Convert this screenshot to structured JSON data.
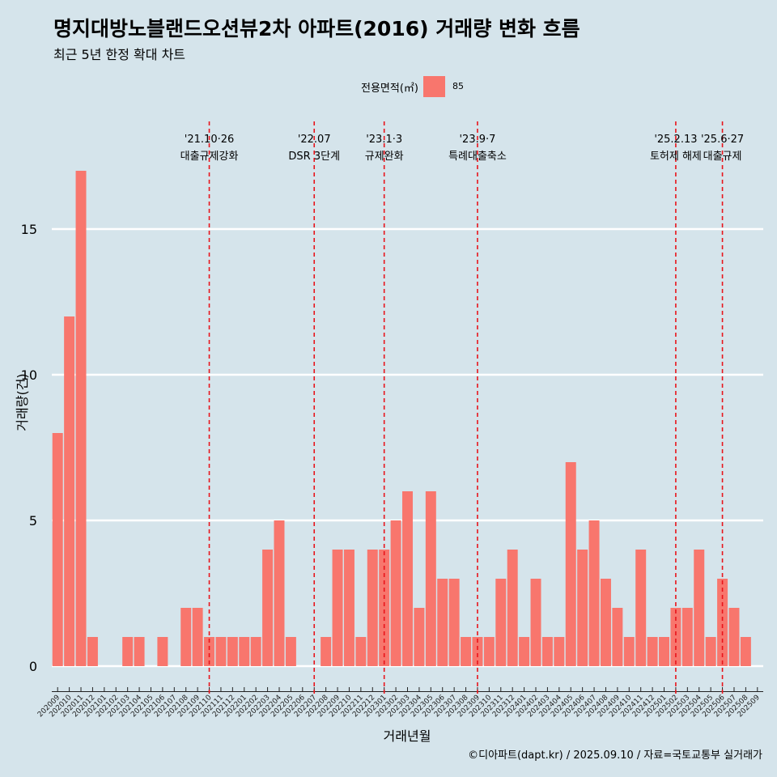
{
  "title": "명지대방노블랜드오션뷰2차 아파트(2016) 거래량 변화 흐름",
  "subtitle": "최근 5년 한정 확대 차트",
  "caption": "©디아파트(dapt.kr) / 2025.09.10 / 자료=국토교통부 실거래가",
  "legend": {
    "title": "전용면적(㎡)",
    "item": "85",
    "color": "#f8766d"
  },
  "chart_data": {
    "type": "bar",
    "xlabel": "거래년월",
    "ylabel": "거래량(건)",
    "ylim": [
      0,
      17
    ],
    "yticks": [
      0,
      5,
      10,
      15
    ],
    "grid": true,
    "legend_position": "top",
    "bar_color": "#f8766d",
    "categories": [
      "202009",
      "202010",
      "202011",
      "202012",
      "202101",
      "202102",
      "202103",
      "202104",
      "202105",
      "202106",
      "202107",
      "202108",
      "202109",
      "202110",
      "202111",
      "202112",
      "202201",
      "202202",
      "202203",
      "202204",
      "202205",
      "202206",
      "202207",
      "202208",
      "202209",
      "202210",
      "202211",
      "202212",
      "202301",
      "202302",
      "202303",
      "202304",
      "202305",
      "202306",
      "202307",
      "202308",
      "202309",
      "202310",
      "202311",
      "202312",
      "202401",
      "202402",
      "202403",
      "202404",
      "202405",
      "202406",
      "202407",
      "202408",
      "202409",
      "202410",
      "202411",
      "202412",
      "202501",
      "202502",
      "202503",
      "202504",
      "202505",
      "202506",
      "202507",
      "202508",
      "202509"
    ],
    "series": [
      {
        "name": "85",
        "values": [
          8,
          12,
          17,
          1,
          0,
          0,
          1,
          1,
          0,
          1,
          0,
          2,
          2,
          1,
          1,
          1,
          1,
          1,
          4,
          5,
          1,
          0,
          0,
          1,
          4,
          4,
          1,
          4,
          4,
          5,
          6,
          2,
          6,
          3,
          3,
          1,
          1,
          1,
          3,
          4,
          1,
          3,
          1,
          1,
          7,
          4,
          5,
          3,
          2,
          1,
          4,
          1,
          1,
          2,
          2,
          4,
          1,
          3,
          2,
          1,
          0
        ]
      }
    ],
    "annotations": [
      {
        "label": "'21.10·26",
        "sublabel": "대출규제강화",
        "x": "202110"
      },
      {
        "label": "'22.07",
        "sublabel": "DSR 3단계",
        "x": "202207"
      },
      {
        "label": "'23.1·3",
        "sublabel": "규제완화",
        "x": "202301"
      },
      {
        "label": "'23.9·7",
        "sublabel": "특례대출축소",
        "x": "202309"
      },
      {
        "label": "'25.2.13",
        "sublabel": "토허제 해제",
        "x": "202502"
      },
      {
        "label": "'25.6·27",
        "sublabel": "대출규제",
        "x": "202506"
      }
    ]
  }
}
